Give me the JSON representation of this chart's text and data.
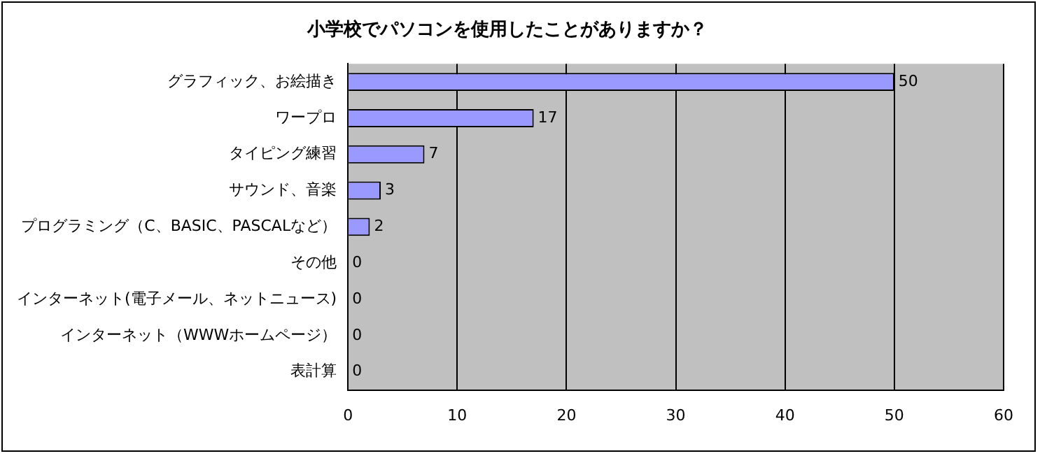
{
  "chart_data": {
    "type": "bar",
    "orientation": "horizontal",
    "title": "小学校でパソコンを使用したことがありますか？",
    "categories": [
      "グラフィック、お絵描き",
      "ワープロ",
      "タイピング練習",
      "サウンド、音楽",
      "プログラミング（C、BASIC、PASCALなど）",
      "その他",
      "インターネット(電子メール、ネットニュース)",
      "インターネット（WWWホームページ）",
      "表計算"
    ],
    "values": [
      50,
      17,
      7,
      3,
      2,
      0,
      0,
      0,
      0
    ],
    "color": "#9999ff",
    "xlim": [
      0,
      60
    ],
    "xticks": [
      0,
      10,
      20,
      30,
      40,
      50,
      60
    ],
    "grid": "x",
    "data_labels": true,
    "legend": false
  }
}
